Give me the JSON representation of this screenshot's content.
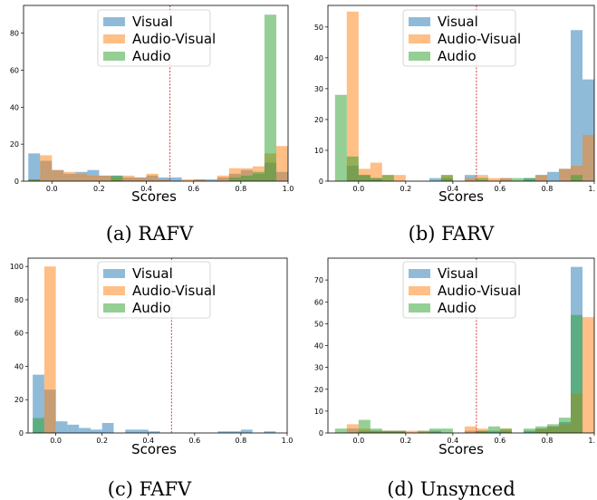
{
  "figure": {
    "colors": {
      "Visual": "#1f77b4",
      "Audio-Visual": "#ff7f0e",
      "Audio": "#2ca02c",
      "threshold": "#d62728"
    },
    "bar_opacity": 0.5
  },
  "chart_data": [
    {
      "id": "a",
      "type": "bar",
      "caption": "(a) RAFV",
      "xlabel": "Scores",
      "ylabel": "",
      "xlim": [
        -0.12,
        1.0
      ],
      "ylim": [
        0,
        95
      ],
      "x_ticks": [
        0.0,
        0.2,
        0.4,
        0.6,
        0.8,
        1.0
      ],
      "x_tick_labels": [
        "0.0",
        "0.2",
        "0.4",
        "0.6",
        "0.8",
        "1.0"
      ],
      "y_ticks": [
        0,
        20,
        40,
        60,
        80
      ],
      "y_tick_labels": [
        "0",
        "20",
        "40",
        "60",
        "80"
      ],
      "threshold": 0.5,
      "legend_position": "top-center",
      "bin_width": 0.05,
      "series": [
        {
          "name": "Visual",
          "bins": [
            [
              -0.1,
              15
            ],
            [
              -0.05,
              11
            ],
            [
              0.0,
              6
            ],
            [
              0.05,
              4
            ],
            [
              0.1,
              5
            ],
            [
              0.15,
              6
            ],
            [
              0.2,
              3
            ],
            [
              0.25,
              3
            ],
            [
              0.3,
              2
            ],
            [
              0.35,
              2
            ],
            [
              0.4,
              3
            ],
            [
              0.45,
              2
            ],
            [
              0.5,
              2
            ],
            [
              0.6,
              1
            ],
            [
              0.65,
              1
            ],
            [
              0.7,
              2
            ],
            [
              0.75,
              4
            ],
            [
              0.8,
              6
            ],
            [
              0.85,
              4
            ],
            [
              0.9,
              10
            ],
            [
              0.95,
              5
            ]
          ]
        },
        {
          "name": "Audio-Visual",
          "bins": [
            [
              -0.1,
              1
            ],
            [
              -0.05,
              14
            ],
            [
              0.0,
              6
            ],
            [
              0.05,
              5
            ],
            [
              0.1,
              4
            ],
            [
              0.15,
              3
            ],
            [
              0.2,
              3
            ],
            [
              0.25,
              2
            ],
            [
              0.3,
              3
            ],
            [
              0.35,
              2
            ],
            [
              0.4,
              4
            ],
            [
              0.45,
              1
            ],
            [
              0.55,
              1
            ],
            [
              0.6,
              1
            ],
            [
              0.7,
              3
            ],
            [
              0.75,
              7
            ],
            [
              0.8,
              7
            ],
            [
              0.85,
              8
            ],
            [
              0.9,
              15
            ],
            [
              0.95,
              19
            ]
          ]
        },
        {
          "name": "Audio",
          "bins": [
            [
              -0.1,
              1
            ],
            [
              0.25,
              3
            ],
            [
              0.75,
              2
            ],
            [
              0.8,
              3
            ],
            [
              0.85,
              5
            ],
            [
              0.9,
              90
            ]
          ]
        }
      ]
    },
    {
      "id": "b",
      "type": "bar",
      "caption": "(b) FARV",
      "xlabel": "Scores",
      "ylabel": "",
      "xlim": [
        -0.13,
        1.0
      ],
      "ylim": [
        0,
        57
      ],
      "x_ticks": [
        0.0,
        0.2,
        0.4,
        0.6,
        0.8,
        1.0
      ],
      "x_tick_labels": [
        "0.0",
        "0.2",
        "0.4",
        "0.6",
        "0.8",
        "1."
      ],
      "y_ticks": [
        0,
        10,
        20,
        30,
        40,
        50
      ],
      "y_tick_labels": [
        "0",
        "10",
        "20",
        "30",
        "40",
        "50"
      ],
      "threshold": 0.5,
      "legend_position": "top-center",
      "bin_width": 0.05,
      "series": [
        {
          "name": "Visual",
          "bins": [
            [
              -0.05,
              5
            ],
            [
              0.0,
              2
            ],
            [
              0.05,
              1
            ],
            [
              0.3,
              1
            ],
            [
              0.35,
              1
            ],
            [
              0.45,
              2
            ],
            [
              0.6,
              1
            ],
            [
              0.7,
              1
            ],
            [
              0.75,
              2
            ],
            [
              0.8,
              3
            ],
            [
              0.85,
              4
            ],
            [
              0.9,
              49
            ],
            [
              0.95,
              33
            ]
          ]
        },
        {
          "name": "Audio-Visual",
          "bins": [
            [
              -0.05,
              55
            ],
            [
              0.0,
              4
            ],
            [
              0.05,
              6
            ],
            [
              0.1,
              2
            ],
            [
              0.15,
              2
            ],
            [
              0.35,
              2
            ],
            [
              0.45,
              1
            ],
            [
              0.5,
              2
            ],
            [
              0.55,
              1
            ],
            [
              0.6,
              1
            ],
            [
              0.75,
              2
            ],
            [
              0.85,
              4
            ],
            [
              0.9,
              5
            ],
            [
              0.95,
              15
            ]
          ]
        },
        {
          "name": "Audio",
          "bins": [
            [
              -0.1,
              28
            ],
            [
              -0.05,
              8
            ],
            [
              0.0,
              2
            ],
            [
              0.05,
              1
            ],
            [
              0.1,
              2
            ],
            [
              0.35,
              2
            ],
            [
              0.5,
              1
            ],
            [
              0.65,
              1
            ],
            [
              0.7,
              1
            ],
            [
              0.9,
              2
            ]
          ]
        }
      ]
    },
    {
      "id": "c",
      "type": "bar",
      "caption": "(c) FAFV",
      "xlabel": "Scores",
      "ylabel": "",
      "xlim": [
        -0.12,
        1.0
      ],
      "ylim": [
        0,
        105
      ],
      "x_ticks": [
        0.0,
        0.2,
        0.4,
        0.6,
        0.8,
        1.0
      ],
      "x_tick_labels": [
        "0.0",
        "0.2",
        "0.4",
        "0.6",
        "0.8",
        "1.0"
      ],
      "y_ticks": [
        0,
        20,
        40,
        60,
        80,
        100
      ],
      "y_tick_labels": [
        "0",
        "20",
        "40",
        "60",
        "80",
        "100"
      ],
      "threshold": 0.5,
      "legend_position": "top-center",
      "bin_width": 0.05,
      "series": [
        {
          "name": "Visual",
          "bins": [
            [
              -0.1,
              35
            ],
            [
              -0.05,
              26
            ],
            [
              0.0,
              7
            ],
            [
              0.05,
              5
            ],
            [
              0.1,
              3
            ],
            [
              0.15,
              2
            ],
            [
              0.2,
              6
            ],
            [
              0.3,
              2
            ],
            [
              0.35,
              2
            ],
            [
              0.4,
              1
            ],
            [
              0.7,
              1
            ],
            [
              0.75,
              1
            ],
            [
              0.8,
              2
            ],
            [
              0.9,
              1
            ]
          ]
        },
        {
          "name": "Audio-Visual",
          "bins": [
            [
              -0.05,
              100
            ]
          ]
        },
        {
          "name": "Audio",
          "bins": [
            [
              -0.1,
              9
            ]
          ]
        }
      ]
    },
    {
      "id": "d",
      "type": "bar",
      "caption": "(d) Unsynced",
      "xlabel": "Scores",
      "ylabel": "",
      "xlim": [
        -0.13,
        1.0
      ],
      "ylim": [
        0,
        80
      ],
      "x_ticks": [
        0.0,
        0.2,
        0.4,
        0.6,
        0.8,
        1.0
      ],
      "x_tick_labels": [
        "0.0",
        "0.2",
        "0.4",
        "0.6",
        "0.8",
        "1."
      ],
      "y_ticks": [
        0,
        10,
        20,
        30,
        40,
        50,
        60,
        70
      ],
      "y_tick_labels": [
        "0",
        "10",
        "20",
        "30",
        "40",
        "50",
        "60",
        "70"
      ],
      "threshold": 0.5,
      "legend_position": "top-center",
      "bin_width": 0.05,
      "series": [
        {
          "name": "Visual",
          "bins": [
            [
              -0.05,
              2
            ],
            [
              0.0,
              1
            ],
            [
              0.05,
              1
            ],
            [
              0.1,
              1
            ],
            [
              0.15,
              1
            ],
            [
              0.3,
              1
            ],
            [
              0.45,
              1
            ],
            [
              0.5,
              1
            ],
            [
              0.55,
              1
            ],
            [
              0.6,
              1
            ],
            [
              0.7,
              1
            ],
            [
              0.75,
              2
            ],
            [
              0.8,
              3
            ],
            [
              0.85,
              5
            ],
            [
              0.9,
              76
            ]
          ]
        },
        {
          "name": "Audio-Visual",
          "bins": [
            [
              -0.05,
              4
            ],
            [
              0.0,
              2
            ],
            [
              0.05,
              1
            ],
            [
              0.1,
              1
            ],
            [
              0.15,
              1
            ],
            [
              0.2,
              1
            ],
            [
              0.25,
              1
            ],
            [
              0.45,
              3
            ],
            [
              0.5,
              2
            ],
            [
              0.6,
              2
            ],
            [
              0.75,
              2
            ],
            [
              0.8,
              3
            ],
            [
              0.85,
              4
            ],
            [
              0.9,
              18
            ],
            [
              0.95,
              53
            ]
          ]
        },
        {
          "name": "Audio",
          "bins": [
            [
              -0.1,
              2
            ],
            [
              0.0,
              6
            ],
            [
              0.05,
              2
            ],
            [
              0.1,
              1
            ],
            [
              0.15,
              1
            ],
            [
              0.25,
              1
            ],
            [
              0.3,
              2
            ],
            [
              0.35,
              2
            ],
            [
              0.5,
              1
            ],
            [
              0.55,
              3
            ],
            [
              0.6,
              2
            ],
            [
              0.7,
              2
            ],
            [
              0.75,
              3
            ],
            [
              0.8,
              4
            ],
            [
              0.85,
              7
            ],
            [
              0.9,
              54
            ]
          ]
        }
      ]
    }
  ]
}
